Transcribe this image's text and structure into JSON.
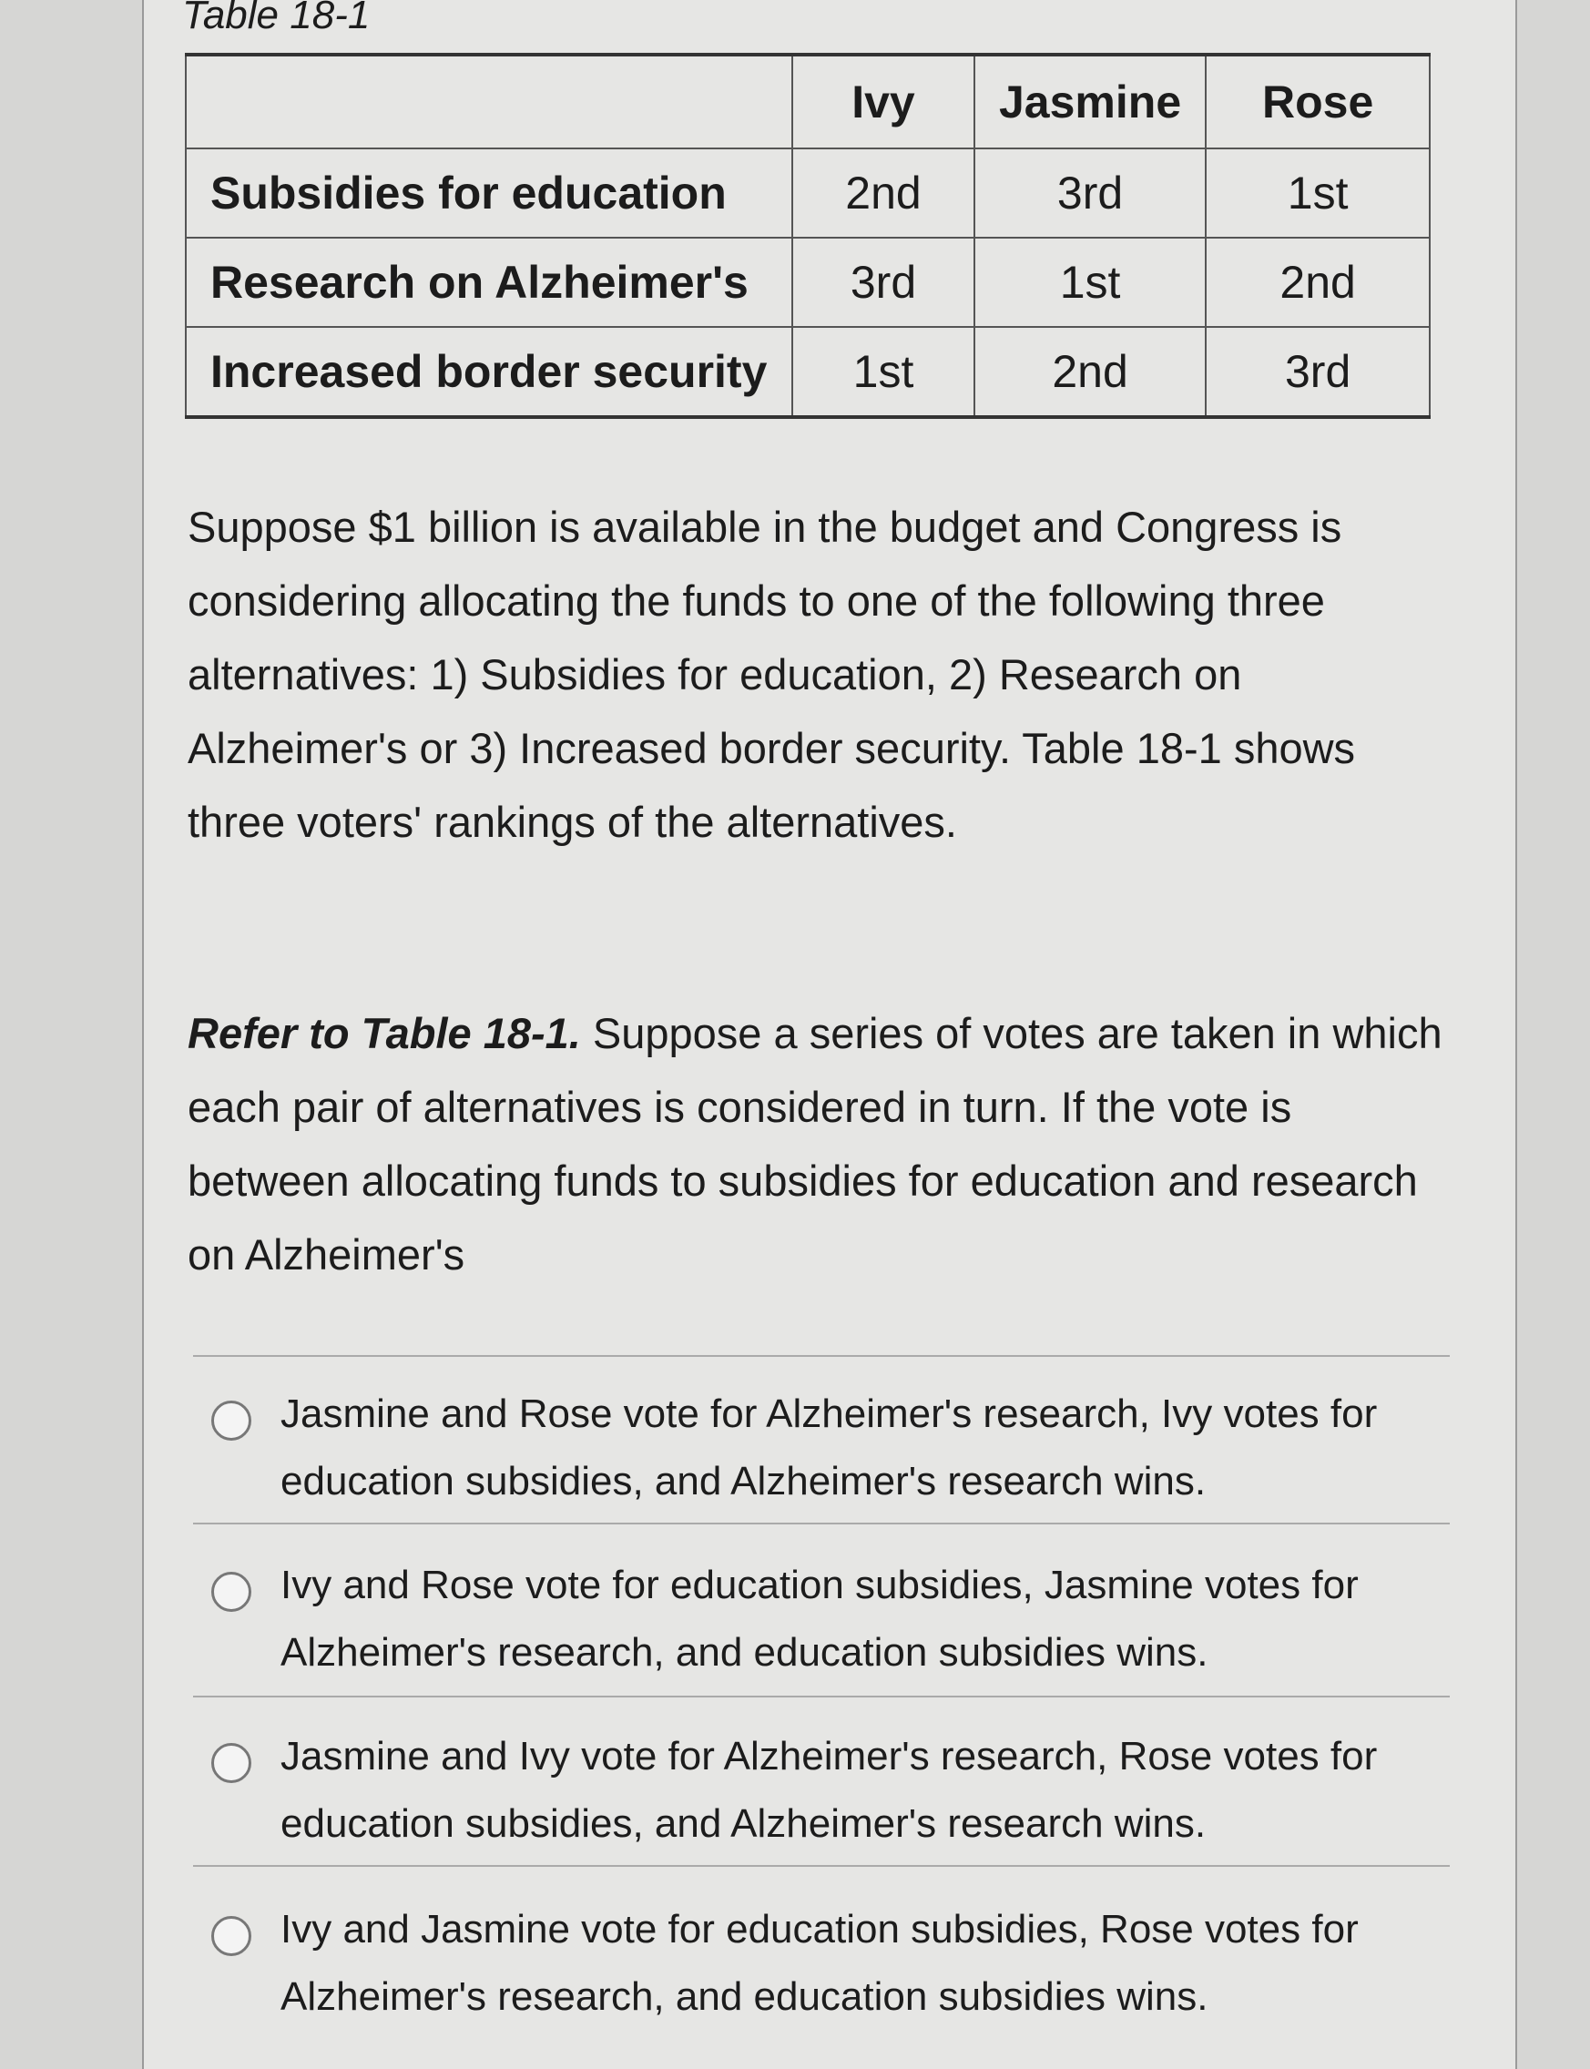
{
  "caption": "Table 18-1",
  "table": {
    "headers": [
      "",
      "Ivy",
      "Jasmine",
      "Rose"
    ],
    "rows": [
      {
        "label": "Subsidies for education",
        "values": [
          "2nd",
          "3rd",
          "1st"
        ]
      },
      {
        "label": "Research on Alzheimer's",
        "values": [
          "3rd",
          "1st",
          "2nd"
        ]
      },
      {
        "label": "Increased border security",
        "values": [
          "1st",
          "2nd",
          "3rd"
        ]
      }
    ]
  },
  "intro": "Suppose $1 billion is available in the budget and Congress is considering allocating the funds to one of the following three alternatives: 1) Subsidies for education, 2) Research on Alzheimer's or 3) Increased border security. Table 18-1 shows three voters' rankings of the alternatives.",
  "question": {
    "ref": "Refer to Table 18-1.",
    "text": " Suppose a series of votes are taken in which each pair of alternatives is considered in turn. If the vote is between allocating funds to subsidies for education and research on Alzheimer's"
  },
  "options": [
    "Jasmine and Rose vote for Alzheimer's research, Ivy votes for education subsidies, and Alzheimer's research wins.",
    "Ivy and Rose vote for education subsidies, Jasmine votes for Alzheimer's research, and education subsidies wins.",
    "Jasmine and Ivy vote for Alzheimer's research, Rose votes for education subsidies, and Alzheimer's research wins.",
    "Ivy and Jasmine vote for education subsidies, Rose votes for Alzheimer's research, and education subsidies wins."
  ]
}
